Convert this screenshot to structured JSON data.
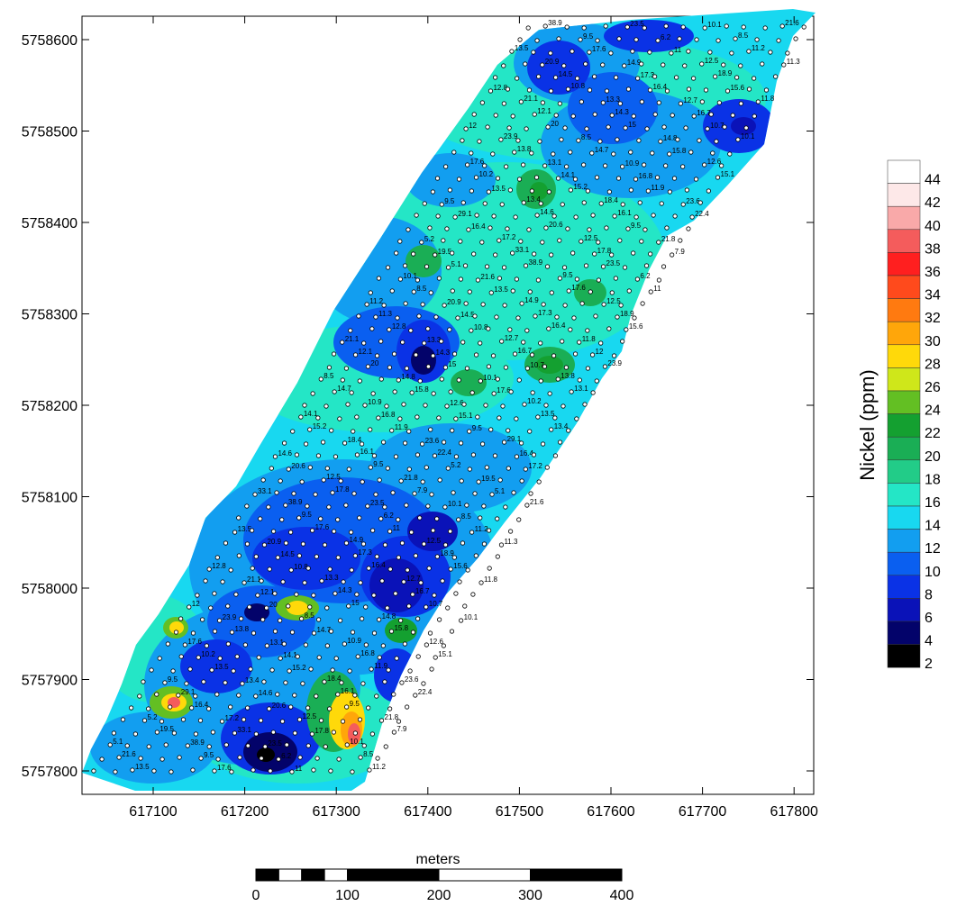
{
  "map": {
    "x_ticks": [
      "617100",
      "617200",
      "617300",
      "617400",
      "617500",
      "617600",
      "617700",
      "617800"
    ],
    "y_ticks": [
      "5757800",
      "5757900",
      "5758000",
      "5758100",
      "5758200",
      "5758300",
      "5758400",
      "5758500",
      "5758600"
    ],
    "legend": {
      "title": "Nickel (ppm)",
      "levels": [
        "44",
        "42",
        "40",
        "38",
        "36",
        "34",
        "32",
        "30",
        "28",
        "26",
        "24",
        "22",
        "20",
        "18",
        "16",
        "14",
        "12",
        "10",
        "8",
        "6",
        "4",
        "2"
      ],
      "colors": [
        "#ffffff",
        "#fde8e8",
        "#f9a9a9",
        "#f45c5c",
        "#ff1f1f",
        "#ff4a1c",
        "#ff7a10",
        "#ffa60a",
        "#ffd90a",
        "#cfe71a",
        "#63bf23",
        "#14a030",
        "#1aae55",
        "#22cc88",
        "#24e6c6",
        "#18d8f0",
        "#129ef0",
        "#0a5ff0",
        "#0a32e6",
        "#0a12b8",
        "#03036a",
        "#000000"
      ]
    },
    "scale_bar": {
      "unit": "meters",
      "labels": [
        "0",
        "100",
        "200",
        "300",
        "400"
      ]
    },
    "sample_labels": [
      "38.9",
      "23.5",
      "10.1",
      "21.6",
      "9.5",
      "6.2",
      "8.5",
      "13.5",
      "17.6",
      "11",
      "11.2",
      "20.9",
      "14.9",
      "12.5",
      "11.3",
      "14.5",
      "17.3",
      "18.9",
      "12.8",
      "10.8",
      "16.4",
      "15.6",
      "21.1",
      "13.3",
      "12.7",
      "11.8",
      "12.1",
      "14.3",
      "16.7",
      "12",
      "20",
      "15",
      "10.7",
      "23.9",
      "8.5",
      "14.8",
      "10.1",
      "13.8",
      "14.7",
      "15.8",
      "17.6",
      "13.1",
      "10.9",
      "12.6",
      "10.2",
      "14.1",
      "16.8",
      "15.1",
      "13.5",
      "15.2",
      "11.9",
      "9.5",
      "13.4",
      "18.4",
      "23.6",
      "29.1",
      "14.6",
      "16.1",
      "22.4",
      "16.4",
      "20.6",
      "9.5",
      "5.2",
      "17.2",
      "12.5",
      "21.8",
      "19.5",
      "33.1",
      "17.8",
      "7.9",
      "5.1"
    ]
  }
}
